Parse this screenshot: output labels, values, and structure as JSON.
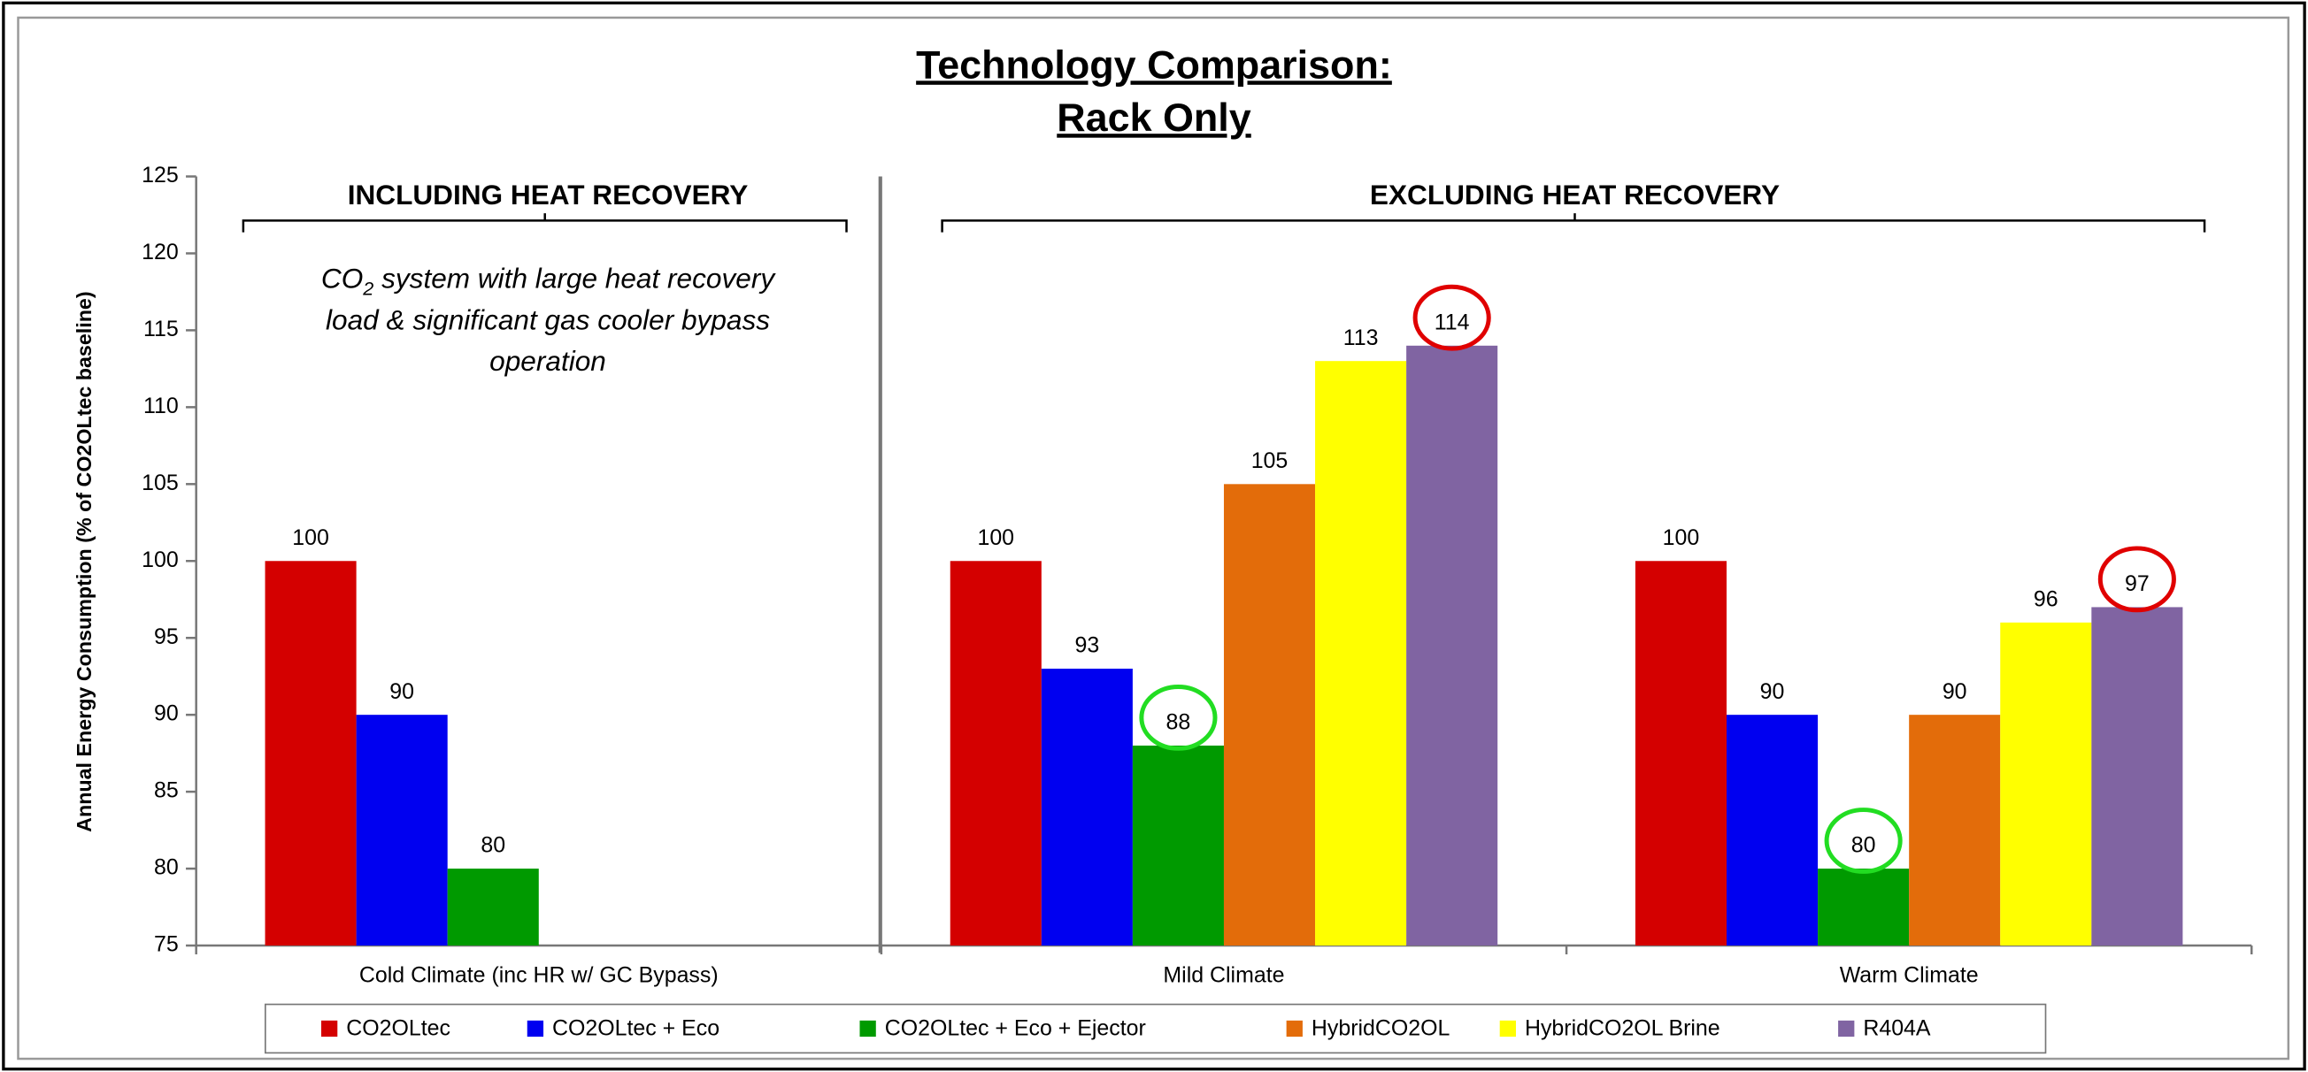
{
  "chart_data": {
    "type": "bar",
    "title": [
      "Technology Comparison:",
      "Rack Only"
    ],
    "y_label": "Annual Energy Consumption (% of CO2OLtec baseline)",
    "section_labels": [
      "INCLUDING HEAT RECOVERY",
      "EXCLUDING HEAT RECOVERY"
    ],
    "note": [
      "CO",
      "2",
      " system with large heat recovery",
      "load & significant gas cooler bypass",
      "operation"
    ],
    "categories": [
      "Cold Climate (inc HR w/ GC Bypass)",
      "Mild Climate",
      "Warm Climate"
    ],
    "series": [
      {
        "name": "CO2OLtec",
        "color": "#d40000",
        "values": [
          100,
          100,
          100
        ]
      },
      {
        "name": "CO2OLtec + Eco",
        "color": "#0000f0",
        "values": [
          90,
          93,
          90
        ]
      },
      {
        "name": "CO2OLtec + Eco + Ejector",
        "color": "#009a00",
        "values": [
          80,
          88,
          80
        ]
      },
      {
        "name": "HybridCO2OL",
        "color": "#e36c0a",
        "values": [
          null,
          105,
          90
        ]
      },
      {
        "name": "HybridCO2OL Brine",
        "color": "#ffff00",
        "values": [
          null,
          113,
          96
        ]
      },
      {
        "name": "R404A",
        "color": "#8064a2",
        "values": [
          null,
          114,
          97
        ]
      }
    ],
    "ylim": [
      75,
      125
    ],
    "yticks": [
      75,
      80,
      85,
      90,
      95,
      100,
      105,
      110,
      115,
      120,
      125
    ],
    "grid": false,
    "legend": "bottom"
  }
}
